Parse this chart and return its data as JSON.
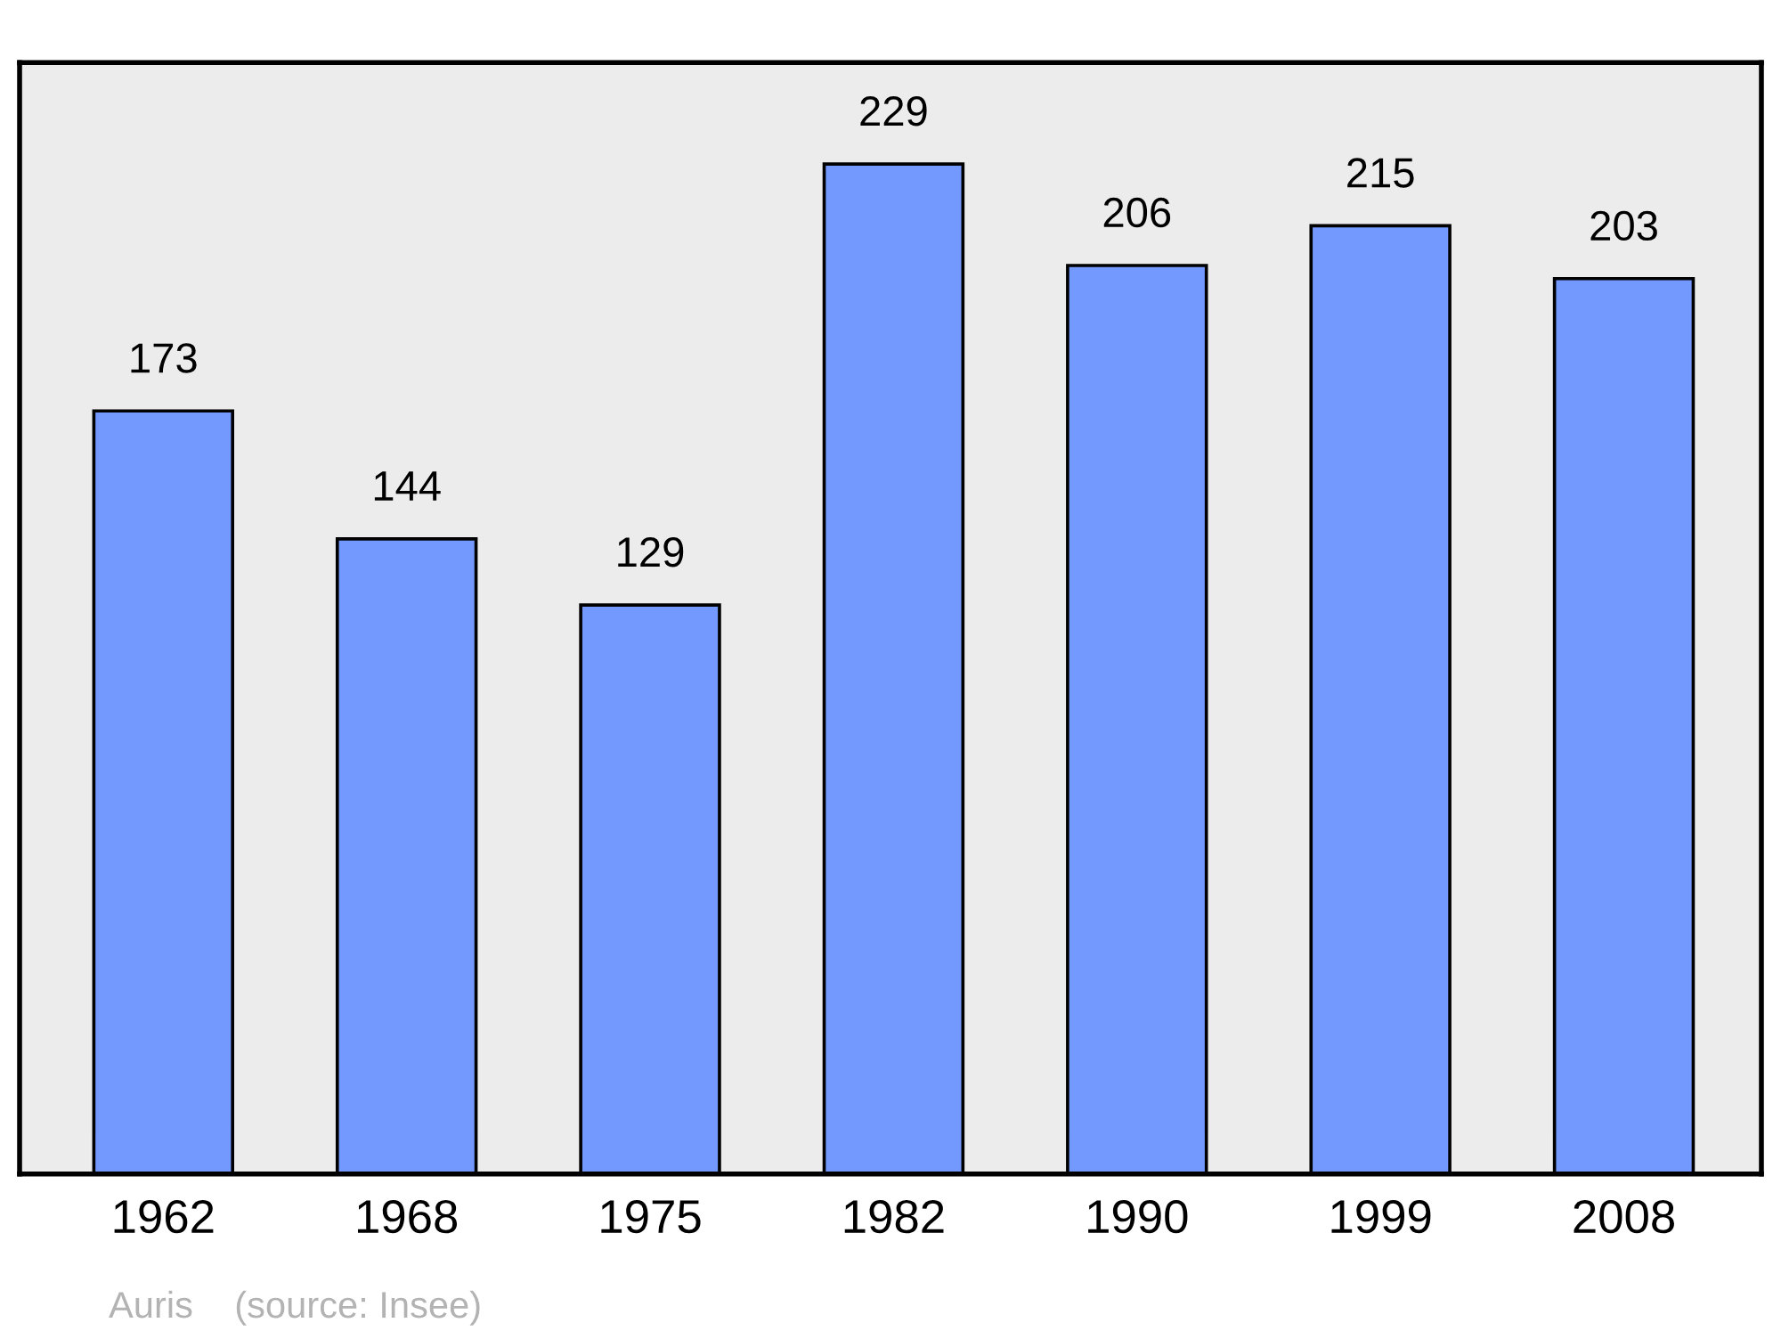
{
  "chart_data": {
    "type": "bar",
    "categories": [
      "1962",
      "1968",
      "1975",
      "1982",
      "1990",
      "1999",
      "2008"
    ],
    "values": [
      173,
      144,
      129,
      229,
      206,
      215,
      203
    ],
    "color": "#7399ff",
    "ylim": [
      0,
      252
    ],
    "data_labels": true,
    "tick_labels": "x",
    "grid": false,
    "legend": false,
    "annotations": [
      "Auris    (source: Insee)"
    ]
  }
}
